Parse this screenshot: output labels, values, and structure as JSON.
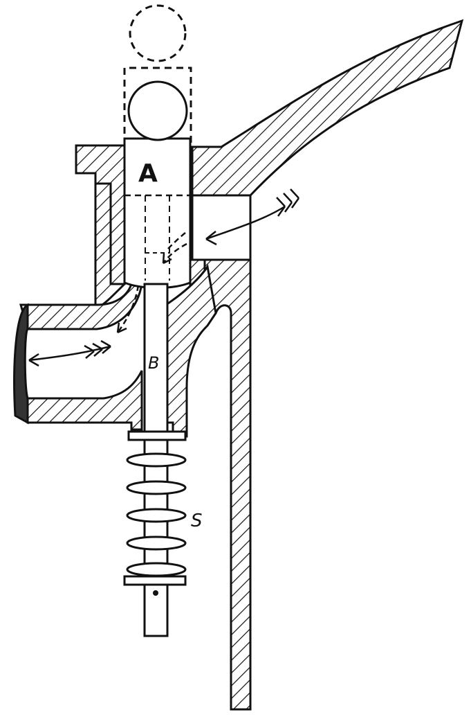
{
  "labels": {
    "valve": "A",
    "stem": "B",
    "spring": "S"
  },
  "colors": {
    "ink": "#111111",
    "paper": "#ffffff"
  }
}
